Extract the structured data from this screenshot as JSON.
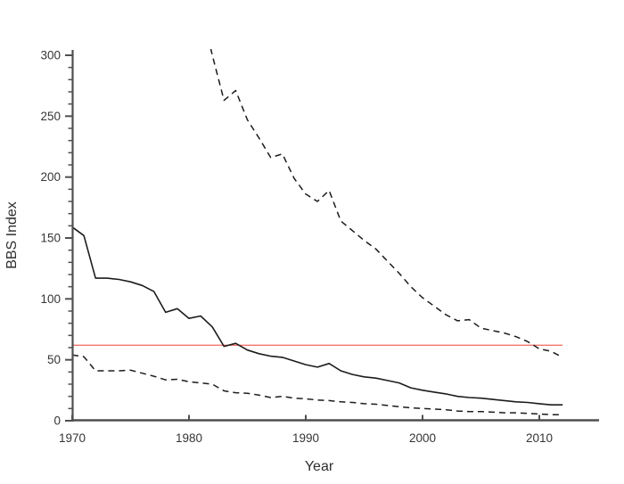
{
  "chart_data": {
    "type": "line",
    "title": "",
    "xlabel": "Year",
    "ylabel": "BBS Index",
    "xlim": [
      1970,
      2015.2
    ],
    "ylim": [
      0,
      303.5
    ],
    "x_ticks": [
      1970,
      1980,
      1990,
      2000,
      2010
    ],
    "y_ticks_major": [
      0,
      50,
      100,
      150,
      200,
      250,
      300
    ],
    "y_minor_tick_step": 10,
    "grid": false,
    "legend": "none",
    "background": "#ffffff",
    "axis_color": "#4f4f4f",
    "line_color": "#1c1c1c",
    "reference_line": {
      "name": "baseline",
      "value": 62,
      "color": "#f2756c",
      "start_year": 1970,
      "end_year": 2012
    },
    "series": [
      {
        "name": "bbs-index",
        "line_style": "solid",
        "start_year": 1970,
        "values": [
          159,
          152,
          117,
          117,
          116,
          114,
          111,
          106,
          89,
          92,
          84,
          86,
          77,
          61,
          63.5,
          58,
          55,
          53,
          52,
          49,
          46,
          44,
          47,
          41,
          38,
          36,
          35,
          33,
          31,
          27,
          25,
          23.5,
          22,
          20,
          19,
          18.5,
          17.5,
          16.5,
          15.5,
          15,
          14,
          13,
          13
        ]
      },
      {
        "name": "upper-confidence-limit",
        "line_style": "dashed",
        "start_year": 1981,
        "values": [
          340,
          300,
          263,
          271,
          247,
          232,
          216,
          219,
          199,
          186,
          180,
          189,
          164,
          156,
          148,
          141,
          131,
          121,
          110,
          101,
          94,
          87,
          82,
          83,
          76,
          74,
          72,
          69,
          65,
          59,
          57,
          52
        ]
      },
      {
        "name": "lower-confidence-limit",
        "line_style": "dashed",
        "start_year": 1970,
        "values": [
          54,
          52.5,
          41,
          41,
          41,
          41.5,
          39,
          36.5,
          33.5,
          34,
          32,
          31,
          30,
          24.5,
          23,
          22.5,
          21,
          19,
          20,
          18.5,
          18,
          17,
          16.5,
          15.5,
          15,
          14,
          13.5,
          12.5,
          11.5,
          10.5,
          10,
          9.5,
          9,
          8,
          7.5,
          7.5,
          7,
          6.5,
          6.5,
          6,
          5.5,
          5,
          5
        ]
      }
    ]
  }
}
